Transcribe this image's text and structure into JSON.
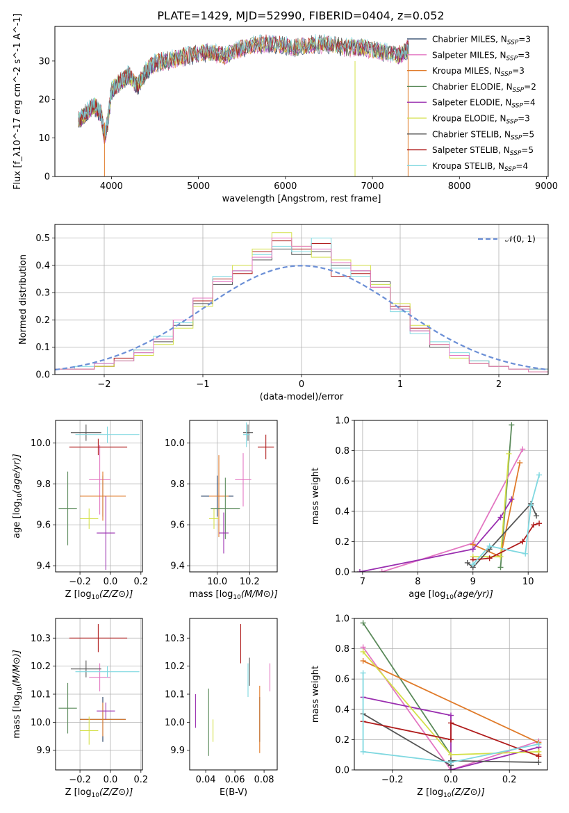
{
  "figure_title": "PLATE=1429, MJD=52990, FIBERID=0404, z=0.052",
  "colors": {
    "Chabrier MILES": "#1f3a5f",
    "Salpeter MILES": "#e377c2",
    "Kroupa MILES": "#e07b2a",
    "Chabrier ELODIE": "#5a8a5a",
    "Salpeter ELODIE": "#9a2fb0",
    "Kroupa ELODIE": "#d4e04a",
    "Chabrier STELIB": "#555555",
    "Salpeter STELIB": "#b01c1c",
    "Kroupa STELIB": "#7fd8e0",
    "normal": "#6b8fd6",
    "grid": "#b0b0b0"
  },
  "chart_data": [
    {
      "id": "spectrum",
      "type": "line",
      "xlabel": "wavelength [Angstrom, rest frame]",
      "ylabel": "Flux [f_λ10^-17 erg cm^-2 s^-1 A^-1]",
      "xlim": [
        3350,
        9020
      ],
      "ylim": [
        0,
        39
      ],
      "xticks": [
        4000,
        5000,
        6000,
        7000,
        8000,
        9000
      ],
      "yticks": [
        0,
        10,
        20,
        30
      ],
      "grid": false,
      "legend_position": "top-right",
      "legend": [
        {
          "name": "Chabrier MILES",
          "nssp": "3"
        },
        {
          "name": "Salpeter MILES",
          "nssp": "3"
        },
        {
          "name": "Kroupa MILES",
          "nssp": "3"
        },
        {
          "name": "Chabrier ELODIE",
          "nssp": "2"
        },
        {
          "name": "Salpeter ELODIE",
          "nssp": "4"
        },
        {
          "name": "Kroupa ELODIE",
          "nssp": "3"
        },
        {
          "name": "Chabrier STELIB",
          "nssp": "5"
        },
        {
          "name": "Salpeter STELIB",
          "nssp": "5"
        },
        {
          "name": "Kroupa STELIB",
          "nssp": "4"
        }
      ],
      "x": [
        3620,
        3700,
        3800,
        3880,
        3920,
        3960,
        4000,
        4100,
        4200,
        4300,
        4400,
        4500,
        4700,
        4900,
        5100,
        5300,
        5500,
        5700,
        5900,
        6100,
        6300,
        6500,
        6700,
        6900,
        7100,
        7300,
        7420
      ],
      "y": [
        14,
        16,
        18,
        16,
        10,
        14,
        22,
        24,
        26,
        23,
        27,
        29,
        30,
        31,
        32,
        31,
        33,
        34,
        34,
        33,
        34,
        34,
        33,
        33,
        32,
        31,
        33
      ]
    },
    {
      "id": "residuals",
      "type": "line",
      "xlabel": "(data-model)/error",
      "ylabel": "Normed distribution",
      "xlim": [
        -2.5,
        2.5
      ],
      "ylim": [
        0,
        0.55
      ],
      "xticks": [
        -2,
        -1,
        0,
        1,
        2
      ],
      "yticks": [
        0.0,
        0.1,
        0.2,
        0.3,
        0.4,
        0.5
      ],
      "grid": true,
      "legend_position": "top-right",
      "legend_label": "𝒩(0, 1)",
      "normal": {
        "mean": 0,
        "sigma": 1
      },
      "bin_edges": [
        -2.5,
        -2.3,
        -2.1,
        -1.9,
        -1.7,
        -1.5,
        -1.3,
        -1.1,
        -0.9,
        -0.7,
        -0.5,
        -0.3,
        -0.1,
        0.1,
        0.3,
        0.5,
        0.7,
        0.9,
        1.1,
        1.3,
        1.5,
        1.7,
        1.9,
        2.1,
        2.3,
        2.5
      ],
      "series": [
        {
          "name": "Chabrier STELIB",
          "values": [
            0.02,
            0.02,
            0.03,
            0.05,
            0.08,
            0.12,
            0.18,
            0.26,
            0.33,
            0.38,
            0.42,
            0.46,
            0.44,
            0.45,
            0.4,
            0.38,
            0.34,
            0.24,
            0.16,
            0.1,
            0.07,
            0.05,
            0.03,
            0.02,
            0.02
          ]
        },
        {
          "name": "Salpeter STELIB",
          "values": [
            0.02,
            0.02,
            0.03,
            0.06,
            0.09,
            0.13,
            0.2,
            0.27,
            0.35,
            0.37,
            0.45,
            0.49,
            0.46,
            0.48,
            0.36,
            0.37,
            0.32,
            0.25,
            0.17,
            0.11,
            0.07,
            0.04,
            0.03,
            0.02,
            0.02
          ]
        },
        {
          "name": "Kroupa STELIB",
          "values": [
            0.02,
            0.03,
            0.04,
            0.05,
            0.09,
            0.14,
            0.19,
            0.28,
            0.36,
            0.38,
            0.44,
            0.47,
            0.45,
            0.5,
            0.39,
            0.36,
            0.33,
            0.23,
            0.15,
            0.12,
            0.08,
            0.05,
            0.03,
            0.02,
            0.02
          ]
        },
        {
          "name": "Kroupa ELODIE",
          "values": [
            0.02,
            0.02,
            0.03,
            0.05,
            0.07,
            0.11,
            0.17,
            0.25,
            0.34,
            0.4,
            0.46,
            0.52,
            0.47,
            0.43,
            0.42,
            0.4,
            0.33,
            0.26,
            0.18,
            0.11,
            0.06,
            0.04,
            0.03,
            0.02,
            0.01
          ]
        },
        {
          "name": "Salpeter MILES",
          "values": [
            0.02,
            0.02,
            0.04,
            0.05,
            0.08,
            0.13,
            0.2,
            0.28,
            0.34,
            0.38,
            0.43,
            0.5,
            0.47,
            0.46,
            0.41,
            0.38,
            0.32,
            0.24,
            0.16,
            0.11,
            0.07,
            0.04,
            0.03,
            0.02,
            0.01
          ]
        }
      ]
    },
    {
      "id": "age-vs-Z",
      "type": "scatter",
      "xlabel": "Z [log10(Z/Z⊙)]",
      "ylabel": "age  [log10(age/yr)]",
      "xlim": [
        -0.36,
        0.21
      ],
      "ylim": [
        9.37,
        10.11
      ],
      "xticks": [
        -0.2,
        0.0,
        0.2
      ],
      "yticks": [
        9.4,
        9.6,
        9.8,
        10.0
      ],
      "grid": true,
      "points": [
        {
          "name": "Chabrier MILES",
          "x": -0.05,
          "y": 9.74,
          "xerr": 0.15,
          "yerr": 0.1
        },
        {
          "name": "Salpeter MILES",
          "x": -0.07,
          "y": 9.82,
          "xerr": 0.07,
          "yerr": 0.17
        },
        {
          "name": "Kroupa MILES",
          "x": -0.05,
          "y": 9.74,
          "xerr": 0.15,
          "yerr": 0.12
        },
        {
          "name": "Chabrier ELODIE",
          "x": -0.28,
          "y": 9.68,
          "xerr": 0.06,
          "yerr": 0.18
        },
        {
          "name": "Salpeter ELODIE",
          "x": -0.03,
          "y": 9.56,
          "xerr": 0.06,
          "yerr": 0.18
        },
        {
          "name": "Kroupa ELODIE",
          "x": -0.14,
          "y": 9.63,
          "xerr": 0.06,
          "yerr": 0.05
        },
        {
          "name": "Chabrier STELIB",
          "x": -0.16,
          "y": 10.05,
          "xerr": 0.1,
          "yerr": 0.04
        },
        {
          "name": "Salpeter STELIB",
          "x": -0.08,
          "y": 9.98,
          "xerr": 0.19,
          "yerr": 0.04
        },
        {
          "name": "Kroupa STELIB",
          "x": -0.02,
          "y": 10.04,
          "xerr": 0.21,
          "yerr": 0.04
        }
      ]
    },
    {
      "id": "age-vs-mass",
      "type": "scatter",
      "xlabel": "mass [log10(M/M⊙)]",
      "ylabel": "",
      "xlim": [
        9.83,
        10.37
      ],
      "ylim": [
        9.37,
        10.11
      ],
      "xticks": [
        10.0,
        10.2
      ],
      "yticks": [
        9.4,
        9.6,
        9.8,
        10.0
      ],
      "grid": true,
      "points": [
        {
          "name": "Chabrier MILES",
          "x": 10.0,
          "y": 9.74,
          "xerr": 0.1,
          "yerr": 0.1
        },
        {
          "name": "Salpeter MILES",
          "x": 10.16,
          "y": 9.82,
          "xerr": 0.05,
          "yerr": 0.13
        },
        {
          "name": "Kroupa MILES",
          "x": 10.01,
          "y": 9.74,
          "xerr": 0.06,
          "yerr": 0.2
        },
        {
          "name": "Chabrier ELODIE",
          "x": 10.05,
          "y": 9.68,
          "xerr": 0.09,
          "yerr": 0.15
        },
        {
          "name": "Salpeter ELODIE",
          "x": 10.04,
          "y": 9.56,
          "xerr": 0.03,
          "yerr": 0.1
        },
        {
          "name": "Kroupa ELODIE",
          "x": 9.98,
          "y": 9.63,
          "xerr": 0.03,
          "yerr": 0.05
        },
        {
          "name": "Chabrier STELIB",
          "x": 10.19,
          "y": 10.05,
          "xerr": 0.03,
          "yerr": 0.04
        },
        {
          "name": "Salpeter STELIB",
          "x": 10.3,
          "y": 9.98,
          "xerr": 0.05,
          "yerr": 0.06
        },
        {
          "name": "Kroupa STELIB",
          "x": 10.18,
          "y": 10.04,
          "xerr": 0.02,
          "yerr": 0.06
        }
      ]
    },
    {
      "id": "massweight-vs-age",
      "type": "line",
      "xlabel": "age  [log10(age/yr)]",
      "ylabel": "mass weight",
      "xlim": [
        6.85,
        10.35
      ],
      "ylim": [
        0,
        1.0
      ],
      "xticks": [
        7,
        8,
        9,
        10
      ],
      "yticks": [
        0.0,
        0.2,
        0.4,
        0.6,
        0.8,
        1.0
      ],
      "grid": true,
      "series": [
        {
          "name": "Chabrier ELODIE",
          "x": [
            9.5,
            9.7
          ],
          "y": [
            0.03,
            0.97
          ]
        },
        {
          "name": "Salpeter MILES",
          "x": [
            7.35,
            9.0,
            9.9
          ],
          "y": [
            0.0,
            0.19,
            0.81
          ]
        },
        {
          "name": "Kroupa MILES",
          "x": [
            9.0,
            9.5,
            9.85
          ],
          "y": [
            0.18,
            0.1,
            0.72
          ]
        },
        {
          "name": "Salpeter ELODIE",
          "x": [
            6.95,
            9.0,
            9.5,
            9.7
          ],
          "y": [
            0.0,
            0.15,
            0.36,
            0.48
          ]
        },
        {
          "name": "Kroupa ELODIE",
          "x": [
            9.0,
            9.5,
            9.65
          ],
          "y": [
            0.1,
            0.1,
            0.78
          ]
        },
        {
          "name": "Chabrier STELIB",
          "x": [
            8.9,
            9.0,
            9.3,
            10.05,
            10.15
          ],
          "y": [
            0.06,
            0.03,
            0.15,
            0.45,
            0.37
          ]
        },
        {
          "name": "Salpeter STELIB",
          "x": [
            9.0,
            9.3,
            9.9,
            10.1,
            10.2
          ],
          "y": [
            0.08,
            0.09,
            0.2,
            0.31,
            0.32
          ]
        },
        {
          "name": "Kroupa STELIB",
          "x": [
            9.0,
            9.3,
            9.95,
            10.05,
            10.2
          ],
          "y": [
            0.05,
            0.17,
            0.12,
            0.44,
            0.64
          ]
        }
      ]
    },
    {
      "id": "mass-vs-Z",
      "type": "scatter",
      "xlabel": "Z [log10(Z/Z⊙)]",
      "ylabel": "mass [log10(M/M⊙)]",
      "xlim": [
        -0.36,
        0.21
      ],
      "ylim": [
        9.83,
        10.37
      ],
      "xticks": [
        -0.2,
        0.0,
        0.2
      ],
      "yticks": [
        9.9,
        10.0,
        10.1,
        10.2,
        10.3
      ],
      "grid": true,
      "points": [
        {
          "name": "Chabrier MILES",
          "x": -0.05,
          "y": 10.01,
          "xerr": 0.15,
          "yerr": 0.08
        },
        {
          "name": "Salpeter MILES",
          "x": -0.07,
          "y": 10.16,
          "xerr": 0.07,
          "yerr": 0.05
        },
        {
          "name": "Kroupa MILES",
          "x": -0.05,
          "y": 10.01,
          "xerr": 0.15,
          "yerr": 0.06
        },
        {
          "name": "Chabrier ELODIE",
          "x": -0.28,
          "y": 10.05,
          "xerr": 0.06,
          "yerr": 0.09
        },
        {
          "name": "Salpeter ELODIE",
          "x": -0.03,
          "y": 10.04,
          "xerr": 0.06,
          "yerr": 0.03
        },
        {
          "name": "Kroupa ELODIE",
          "x": -0.14,
          "y": 9.97,
          "xerr": 0.06,
          "yerr": 0.05
        },
        {
          "name": "Chabrier STELIB",
          "x": -0.16,
          "y": 10.19,
          "xerr": 0.1,
          "yerr": 0.03
        },
        {
          "name": "Salpeter STELIB",
          "x": -0.08,
          "y": 10.3,
          "xerr": 0.19,
          "yerr": 0.05
        },
        {
          "name": "Kroupa STELIB",
          "x": -0.02,
          "y": 10.18,
          "xerr": 0.21,
          "yerr": 0.02
        }
      ]
    },
    {
      "id": "mass-vs-ebv",
      "type": "scatter",
      "xlabel": "E(B-V)",
      "ylabel": "",
      "xlim": [
        0.029,
        0.089
      ],
      "ylim": [
        9.83,
        10.37
      ],
      "xticks": [
        0.04,
        0.06,
        0.08
      ],
      "yticks": [
        9.9,
        10.0,
        10.1,
        10.2,
        10.3
      ],
      "grid": false,
      "points": [
        {
          "name": "Chabrier MILES",
          "x": 0.077,
          "y": 10.01,
          "xerr": 0,
          "yerr": 0.08
        },
        {
          "name": "Salpeter MILES",
          "x": 0.084,
          "y": 10.16,
          "xerr": 0,
          "yerr": 0.05
        },
        {
          "name": "Kroupa MILES",
          "x": 0.077,
          "y": 10.01,
          "xerr": 0,
          "yerr": 0.12
        },
        {
          "name": "Chabrier ELODIE",
          "x": 0.042,
          "y": 10.0,
          "xerr": 0,
          "yerr": 0.12
        },
        {
          "name": "Salpeter ELODIE",
          "x": 0.033,
          "y": 10.04,
          "xerr": 0,
          "yerr": 0.06
        },
        {
          "name": "Kroupa ELODIE",
          "x": 0.045,
          "y": 9.97,
          "xerr": 0,
          "yerr": 0.04
        },
        {
          "name": "Chabrier STELIB",
          "x": 0.07,
          "y": 10.18,
          "xerr": 0,
          "yerr": 0.05
        },
        {
          "name": "Salpeter STELIB",
          "x": 0.064,
          "y": 10.28,
          "xerr": 0,
          "yerr": 0.07
        },
        {
          "name": "Kroupa STELIB",
          "x": 0.069,
          "y": 10.15,
          "xerr": 0,
          "yerr": 0.06
        }
      ]
    },
    {
      "id": "massweight-vs-Z",
      "type": "line",
      "xlabel": "Z [log10(Z/Z⊙)]",
      "ylabel": "mass weight",
      "xlim": [
        -0.33,
        0.33
      ],
      "ylim": [
        0,
        1.0
      ],
      "xticks": [
        -0.2,
        0.0,
        0.2
      ],
      "yticks": [
        0.0,
        0.2,
        0.4,
        0.6,
        0.8,
        1.0
      ],
      "grid": true,
      "series": [
        {
          "name": "Chabrier ELODIE",
          "x": [
            -0.3,
            0.0,
            0.0
          ],
          "y": [
            0.97,
            0.1,
            0.03
          ]
        },
        {
          "name": "Salpeter MILES",
          "x": [
            -0.3,
            0.0,
            0.3
          ],
          "y": [
            0.81,
            0.0,
            0.19
          ]
        },
        {
          "name": "Kroupa MILES",
          "x": [
            -0.3,
            0.3,
            0.3
          ],
          "y": [
            0.72,
            0.18,
            0.1
          ]
        },
        {
          "name": "Salpeter ELODIE",
          "x": [
            -0.3,
            0.0,
            0.0,
            0.3
          ],
          "y": [
            0.48,
            0.36,
            0.0,
            0.15
          ]
        },
        {
          "name": "Kroupa ELODIE",
          "x": [
            -0.3,
            0.0,
            0.3
          ],
          "y": [
            0.78,
            0.1,
            0.12
          ]
        },
        {
          "name": "Chabrier STELIB",
          "x": [
            -0.3,
            0.0,
            0.0,
            0.3
          ],
          "y": [
            0.37,
            0.03,
            0.06,
            0.05
          ]
        },
        {
          "name": "Salpeter STELIB",
          "x": [
            -0.3,
            0.0,
            0.0,
            0.3
          ],
          "y": [
            0.32,
            0.2,
            0.31,
            0.09
          ]
        },
        {
          "name": "Kroupa STELIB",
          "x": [
            -0.3,
            -0.3,
            0.0,
            0.3
          ],
          "y": [
            0.64,
            0.12,
            0.05,
            0.17
          ]
        }
      ]
    }
  ]
}
